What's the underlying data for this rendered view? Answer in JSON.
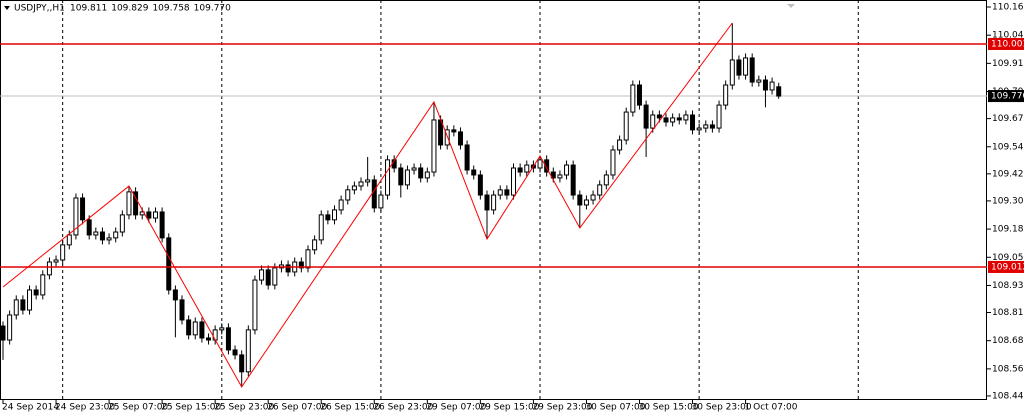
{
  "chart_data": {
    "type": "candlestick",
    "symbol": "USDJPY,,H1",
    "header_values": [
      109.811,
      109.829,
      109.758,
      {
        "value": 109.77,
        "label": "109.770"
      }
    ],
    "categories": [
      "24 Sep 2014",
      null,
      null,
      null,
      null,
      null,
      null,
      null,
      "24 Sep 23:00",
      null,
      null,
      null,
      null,
      null,
      null,
      null,
      "25 Sep 07:00",
      null,
      null,
      null,
      null,
      null,
      null,
      null,
      "25 Sep 15:00",
      null,
      null,
      null,
      null,
      null,
      null,
      null,
      "25 Sep 23:00",
      null,
      null,
      null,
      null,
      null,
      null,
      null,
      "26 Sep 07:00",
      null,
      null,
      null,
      null,
      null,
      null,
      null,
      "26 Sep 15:00",
      null,
      null,
      null,
      null,
      null,
      null,
      null,
      "26 Sep 23:00",
      null,
      null,
      null,
      null,
      null,
      null,
      null,
      "29 Sep 07:00",
      null,
      null,
      null,
      null,
      null,
      null,
      null,
      "29 Sep 15:00",
      null,
      null,
      null,
      null,
      null,
      null,
      null,
      "29 Sep 23:00",
      null,
      null,
      null,
      null,
      null,
      null,
      null,
      "30 Sep 07:00",
      null,
      null,
      null,
      null,
      null,
      null,
      null,
      "30 Sep 15:00",
      null,
      null,
      null,
      null,
      null,
      null,
      null,
      "30 Sep 23:00",
      null,
      null,
      null,
      null,
      null,
      null,
      null,
      "1 Oct 07:00",
      null,
      null,
      null,
      null,
      null
    ],
    "open": [
      108.75,
      108.688,
      108.799,
      108.866,
      108.821,
      108.91,
      108.888,
      108.977,
      109.034,
      109.043,
      109.11,
      109.154,
      109.318,
      109.221,
      109.154,
      109.167,
      109.132,
      109.141,
      109.167,
      109.243,
      109.345,
      109.243,
      109.256,
      109.229,
      109.256,
      109.141,
      108.91,
      108.866,
      108.777,
      108.711,
      108.768,
      108.697,
      108.688,
      108.733,
      108.742,
      108.644,
      108.622,
      108.547,
      108.733,
      108.954,
      108.999,
      108.932,
      109.008,
      109.021,
      108.99,
      109.034,
      109.008,
      109.088,
      109.132,
      109.243,
      109.221,
      109.265,
      109.309,
      109.354,
      109.371,
      109.389,
      109.398,
      109.274,
      109.331,
      109.487,
      109.451,
      109.376,
      109.442,
      109.451,
      109.407,
      109.433,
      109.664,
      109.553,
      109.62,
      109.611,
      109.553,
      109.442,
      109.42,
      109.331,
      109.265,
      109.331,
      109.354,
      109.331,
      109.451,
      109.433,
      109.464,
      109.451,
      109.487,
      109.433,
      109.407,
      109.42,
      109.464,
      109.331,
      109.287,
      109.309,
      109.331,
      109.376,
      109.42,
      109.531,
      109.575,
      109.699,
      109.819,
      109.73,
      109.628,
      109.686,
      109.673,
      109.655,
      109.673,
      109.664,
      109.686,
      109.62,
      109.628,
      109.642,
      109.628,
      109.73,
      109.819,
      109.93,
      109.863,
      109.939,
      109.832,
      109.841,
      109.797,
      109.811
    ],
    "high": [
      108.77,
      108.819,
      108.886,
      108.886,
      108.93,
      108.93,
      108.997,
      109.054,
      109.063,
      109.13,
      109.174,
      109.338,
      109.338,
      109.241,
      109.187,
      109.187,
      109.161,
      109.187,
      109.263,
      109.371,
      109.365,
      109.276,
      109.276,
      109.276,
      109.276,
      109.161,
      108.93,
      108.886,
      108.797,
      108.788,
      108.788,
      108.717,
      108.753,
      108.762,
      108.762,
      108.664,
      108.642,
      108.753,
      108.974,
      109.019,
      109.019,
      109.028,
      109.041,
      109.041,
      109.054,
      109.054,
      109.108,
      109.152,
      109.263,
      109.263,
      109.285,
      109.329,
      109.374,
      109.391,
      109.409,
      109.5,
      109.418,
      109.351,
      109.507,
      109.507,
      109.471,
      109.462,
      109.471,
      109.471,
      109.453,
      109.744,
      109.684,
      109.64,
      109.64,
      109.631,
      109.573,
      109.462,
      109.44,
      109.351,
      109.351,
      109.374,
      109.374,
      109.471,
      109.471,
      109.484,
      109.484,
      109.504,
      109.507,
      109.453,
      109.44,
      109.484,
      109.484,
      109.351,
      109.329,
      109.351,
      109.396,
      109.44,
      109.551,
      109.595,
      109.719,
      109.839,
      109.839,
      109.75,
      109.706,
      109.706,
      109.693,
      109.693,
      109.693,
      109.706,
      109.706,
      109.648,
      109.662,
      109.662,
      109.75,
      109.839,
      110.094,
      109.95,
      109.959,
      109.959,
      109.861,
      109.861,
      109.852,
      109.829
    ],
    "low": [
      108.6,
      108.668,
      108.779,
      108.801,
      108.801,
      108.868,
      108.868,
      108.957,
      109.014,
      109.023,
      109.09,
      109.134,
      109.201,
      109.134,
      109.134,
      109.112,
      109.112,
      109.121,
      109.147,
      109.223,
      109.223,
      109.223,
      109.209,
      109.209,
      109.121,
      108.89,
      108.7,
      108.757,
      108.691,
      108.691,
      108.677,
      108.668,
      108.668,
      108.713,
      108.624,
      108.602,
      108.48,
      108.527,
      108.713,
      108.934,
      108.912,
      108.912,
      108.988,
      108.97,
      108.97,
      108.988,
      108.988,
      109.068,
      109.112,
      109.201,
      109.201,
      109.245,
      109.289,
      109.334,
      109.351,
      109.369,
      109.254,
      109.254,
      109.311,
      109.431,
      109.32,
      109.356,
      109.422,
      109.387,
      109.387,
      109.413,
      109.533,
      109.533,
      109.591,
      109.533,
      109.422,
      109.4,
      109.311,
      109.136,
      109.245,
      109.311,
      109.311,
      109.311,
      109.413,
      109.413,
      109.431,
      109.431,
      109.413,
      109.387,
      109.387,
      109.4,
      109.311,
      109.185,
      109.267,
      109.289,
      109.311,
      109.356,
      109.4,
      109.511,
      109.555,
      109.679,
      109.71,
      109.5,
      109.608,
      109.653,
      109.635,
      109.635,
      109.644,
      109.644,
      109.6,
      109.6,
      109.608,
      109.608,
      109.608,
      109.71,
      109.799,
      109.843,
      109.843,
      109.812,
      109.812,
      109.72,
      109.777,
      109.758
    ],
    "close": [
      108.688,
      108.799,
      108.866,
      108.821,
      108.91,
      108.888,
      108.977,
      109.034,
      109.043,
      109.11,
      109.154,
      109.318,
      109.221,
      109.154,
      109.167,
      109.132,
      109.141,
      109.167,
      109.243,
      109.345,
      109.243,
      109.256,
      109.229,
      109.256,
      109.141,
      108.91,
      108.866,
      108.777,
      108.711,
      108.768,
      108.697,
      108.688,
      108.733,
      108.742,
      108.644,
      108.622,
      108.547,
      108.733,
      108.954,
      108.999,
      108.932,
      109.008,
      109.021,
      108.99,
      109.034,
      109.008,
      109.088,
      109.132,
      109.243,
      109.221,
      109.265,
      109.309,
      109.354,
      109.371,
      109.389,
      109.398,
      109.274,
      109.331,
      109.487,
      109.451,
      109.376,
      109.442,
      109.451,
      109.407,
      109.433,
      109.664,
      109.553,
      109.62,
      109.611,
      109.553,
      109.442,
      109.42,
      109.331,
      109.265,
      109.331,
      109.354,
      109.331,
      109.451,
      109.433,
      109.464,
      109.451,
      109.487,
      109.433,
      109.407,
      109.42,
      109.464,
      109.331,
      109.287,
      109.309,
      109.331,
      109.376,
      109.42,
      109.531,
      109.575,
      109.699,
      109.819,
      109.73,
      109.628,
      109.686,
      109.673,
      109.655,
      109.673,
      109.664,
      109.686,
      109.62,
      109.628,
      109.642,
      109.628,
      109.73,
      109.819,
      109.93,
      109.863,
      109.939,
      109.832,
      109.841,
      109.797,
      109.832,
      109.77
    ],
    "zigzag": {
      "color": "#ff0000",
      "index": [
        0,
        19,
        36,
        65,
        73,
        81,
        87,
        110
      ],
      "values": [
        108.923,
        109.371,
        108.48,
        109.744,
        109.136,
        109.504,
        109.185,
        110.094
      ]
    },
    "levels": [
      {
        "value": 110.001,
        "color": "#e00000"
      },
      {
        "value": 109.012,
        "color": "#e00000"
      }
    ],
    "last_price": {
      "value": 109.77,
      "label": "109.770",
      "color": "#000000"
    },
    "ylim": [
      108.422,
      110.196
    ],
    "yticks": [
      110.165,
      {
        "value": 110.04,
        "label": "110.040"
      },
      109.915,
      {
        "value": 109.79,
        "label": "109.790"
      },
      {
        "value": 109.67,
        "label": "109.670"
      },
      109.545,
      109.425,
      109.305,
      {
        "value": 109.18,
        "label": "109.180"
      },
      109.055,
      {
        "value": 108.93,
        "label": "108.930"
      },
      {
        "value": 108.81,
        "label": "108.810"
      },
      108.685,
      {
        "value": 108.56,
        "label": "108.560"
      },
      {
        "value": 108.44,
        "label": "108.440"
      }
    ]
  }
}
